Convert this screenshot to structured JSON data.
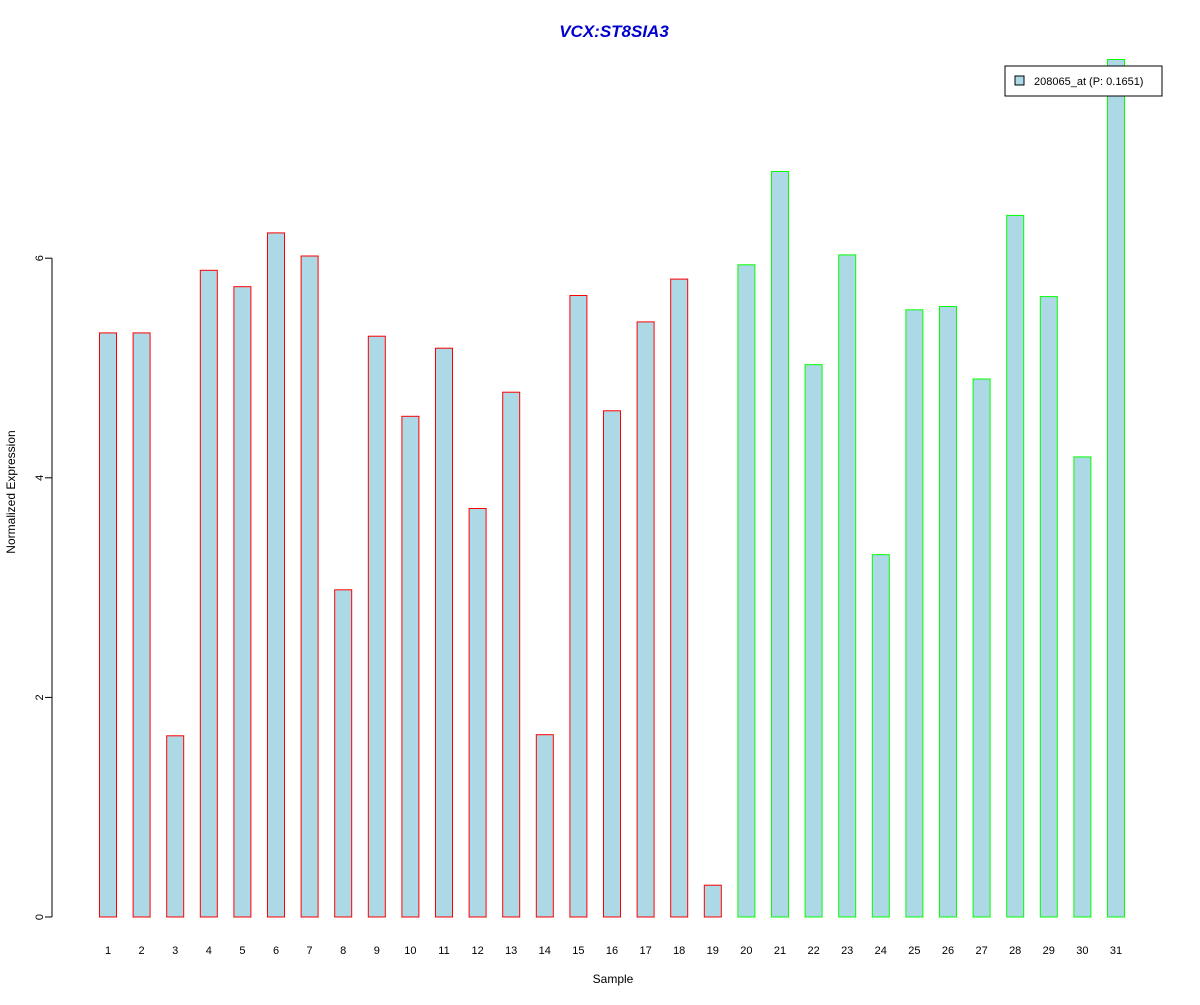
{
  "colors": {
    "bar_fill": "#add8e6",
    "group1_border": "#ff0000",
    "group2_border": "#00ff00",
    "title_color": "#0000cd",
    "axis_color": "#000000"
  },
  "chart_data": {
    "type": "bar",
    "title": "VCX:ST8SIA3",
    "xlabel": "Sample",
    "ylabel": "Normalized Expression",
    "ylim": [
      0,
      7.8
    ],
    "yticks": [
      0,
      2,
      4,
      6
    ],
    "grid": false,
    "legend": {
      "position": "top-right",
      "entries": [
        "208065_at (P: 0.1651)"
      ]
    },
    "categories": [
      "1",
      "2",
      "3",
      "4",
      "5",
      "6",
      "7",
      "8",
      "9",
      "10",
      "11",
      "12",
      "13",
      "14",
      "15",
      "16",
      "17",
      "18",
      "19",
      "20",
      "21",
      "22",
      "23",
      "24",
      "25",
      "26",
      "27",
      "28",
      "29",
      "30",
      "31"
    ],
    "series": [
      {
        "name": "208065_at (P: 0.1651)",
        "values": [
          5.32,
          5.32,
          1.65,
          5.89,
          5.74,
          6.23,
          6.02,
          2.98,
          5.29,
          4.56,
          5.18,
          3.72,
          4.78,
          1.66,
          5.66,
          4.61,
          5.42,
          5.81,
          0.29,
          5.94,
          6.79,
          5.03,
          6.03,
          3.3,
          5.53,
          5.56,
          4.9,
          6.39,
          5.65,
          4.19,
          7.81
        ],
        "groups": [
          1,
          1,
          1,
          1,
          1,
          1,
          1,
          1,
          1,
          1,
          1,
          1,
          1,
          1,
          1,
          1,
          1,
          1,
          1,
          2,
          2,
          2,
          2,
          2,
          2,
          2,
          2,
          2,
          2,
          2,
          2
        ]
      }
    ]
  }
}
